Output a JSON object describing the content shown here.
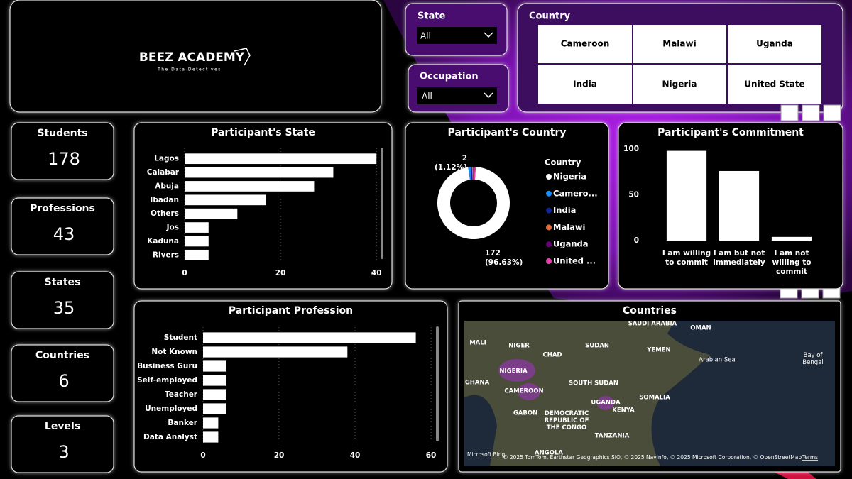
{
  "logo": {
    "title": "BEEZ ACADEMY",
    "tagline": "The Data Detectives"
  },
  "slicers": [
    {
      "title": "State",
      "value": "All"
    },
    {
      "title": "Occupation",
      "value": "All"
    }
  ],
  "country_slicer": {
    "title": "Country",
    "options": [
      "Cameroon",
      "Malawi",
      "Uganda",
      "India",
      "Nigeria",
      "United State"
    ]
  },
  "cards": [
    {
      "label": "Students",
      "value": 178
    },
    {
      "label": "Professions",
      "value": 43
    },
    {
      "label": "States",
      "value": 35
    },
    {
      "label": "Countries",
      "value": 6
    },
    {
      "label": "Levels",
      "value": 3
    }
  ],
  "chart_data": [
    {
      "type": "hbar",
      "title": "Participant's State",
      "categories": [
        "Lagos",
        "Calabar",
        "Abuja",
        "Ibadan",
        "Others",
        "Jos",
        "Kaduna",
        "Rivers"
      ],
      "values": [
        40,
        31,
        27,
        17,
        11,
        5,
        5,
        5
      ],
      "color": "#ffffff",
      "xlim": [
        0,
        41
      ],
      "xticks": [
        0,
        20,
        40
      ],
      "grid": true
    },
    {
      "type": "donut",
      "title": "Participant's Country",
      "legend_title": "Country",
      "categories": [
        "Nigeria",
        "Camero...",
        "India",
        "Malawi",
        "Uganda",
        "United ..."
      ],
      "values": [
        172,
        2,
        1,
        1,
        1,
        1
      ],
      "value_labels": [
        "172 (96.63%)",
        "2 (1.12%)",
        null,
        null,
        null,
        null
      ],
      "colors": [
        "#ffffff",
        "#118dff",
        "#12239e",
        "#e66c37",
        "#6b007b",
        "#e044a7"
      ]
    },
    {
      "type": "column",
      "title": "Participant's Commitment",
      "categories": [
        "I am willing to commit",
        "I am but not immediately",
        "I am not willing to commit"
      ],
      "values": [
        98,
        76,
        4
      ],
      "color": "#ffffff",
      "ylim": [
        0,
        100
      ],
      "yticks": [
        0,
        50,
        100
      ],
      "grid": false
    },
    {
      "type": "hbar",
      "title": "Participant Profession",
      "categories": [
        "Student",
        "Not Known",
        "Business Guru",
        "Self-employed",
        "Teacher",
        "Unemployed",
        "Banker",
        "Data Analyst"
      ],
      "values": [
        56,
        38,
        6,
        6,
        6,
        6,
        4,
        4
      ],
      "color": "#ffffff",
      "xlim": [
        0,
        60
      ],
      "xticks": [
        0,
        20,
        40,
        60
      ],
      "grid": true
    }
  ],
  "map": {
    "title": "Countries",
    "labels": [
      "SAUDI ARABIA",
      "OMAN",
      "MALI",
      "NIGER",
      "CHAD",
      "SUDAN",
      "YEMEN",
      "Arabian Sea",
      "Bay of Bengal",
      "NIGERIA",
      "GHANA",
      "CAMEROON",
      "SOUTH SUDAN",
      "SOMALIA",
      "UGANDA",
      "KENYA",
      "GABON",
      "DEMOCRATIC REPUBLIC OF THE CONGO",
      "TANZANIA",
      "ANGOLA"
    ],
    "brand": "Microsoft Bing",
    "attribution": "© 2025 TomTom, Earthstar Geographics SIO, © 2025 NavInfo, © 2025 Microsoft Corporation, © OpenStreetMap",
    "terms": "Terms"
  }
}
